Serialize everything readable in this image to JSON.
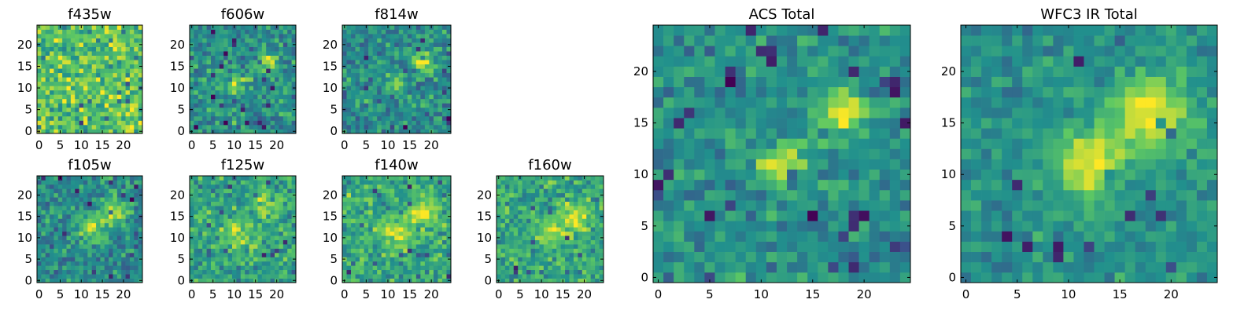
{
  "figure": {
    "colormap": "viridis",
    "colormap_stops": [
      "#440154",
      "#3b528b",
      "#21908d",
      "#5dc863",
      "#fde725"
    ],
    "frame_color": "#000000"
  },
  "chart_data": [
    {
      "type": "heatmap",
      "title": "f435w",
      "grid_size": [
        25,
        25
      ],
      "xlim": [
        -0.5,
        24.5
      ],
      "ylim": [
        -0.5,
        24.5
      ],
      "xticks": [
        0,
        5,
        10,
        15,
        20
      ],
      "yticks": [
        0,
        5,
        10,
        15,
        20
      ],
      "value_range": [
        0,
        1
      ],
      "mean_level": 0.72,
      "noise": 0.2,
      "sources": []
    },
    {
      "type": "heatmap",
      "title": "f606w",
      "grid_size": [
        25,
        25
      ],
      "xlim": [
        -0.5,
        24.5
      ],
      "ylim": [
        -0.5,
        24.5
      ],
      "xticks": [
        0,
        5,
        10,
        15,
        20
      ],
      "yticks": [
        0,
        5,
        10,
        15,
        20
      ],
      "value_range": [
        0,
        1
      ],
      "mean_level": 0.5,
      "noise": 0.16,
      "sources": [
        {
          "x": 11,
          "y": 11,
          "amplitude": 0.35,
          "sigma": 1.6
        },
        {
          "x": 18,
          "y": 16,
          "amplitude": 0.45,
          "sigma": 1.5
        }
      ]
    },
    {
      "type": "heatmap",
      "title": "f814w",
      "grid_size": [
        25,
        25
      ],
      "xlim": [
        -0.5,
        24.5
      ],
      "ylim": [
        -0.5,
        24.5
      ],
      "xticks": [
        0,
        5,
        10,
        15,
        20
      ],
      "yticks": [
        0,
        5,
        10,
        15,
        20
      ],
      "value_range": [
        0,
        1
      ],
      "mean_level": 0.48,
      "noise": 0.16,
      "sources": [
        {
          "x": 12,
          "y": 11,
          "amplitude": 0.4,
          "sigma": 1.5
        },
        {
          "x": 18,
          "y": 16,
          "amplitude": 0.5,
          "sigma": 1.5
        }
      ]
    },
    {
      "type": "heatmap",
      "title": "f105w",
      "grid_size": [
        25,
        25
      ],
      "xlim": [
        -0.5,
        24.5
      ],
      "ylim": [
        -0.5,
        24.5
      ],
      "xticks": [
        0,
        5,
        10,
        15,
        20
      ],
      "yticks": [
        0,
        5,
        10,
        15,
        20
      ],
      "value_range": [
        0,
        1
      ],
      "mean_level": 0.48,
      "noise": 0.15,
      "sources": [
        {
          "x": 12,
          "y": 12,
          "amplitude": 0.4,
          "sigma": 2.2
        },
        {
          "x": 18,
          "y": 16,
          "amplitude": 0.45,
          "sigma": 2.0
        }
      ]
    },
    {
      "type": "heatmap",
      "title": "f125w",
      "grid_size": [
        25,
        25
      ],
      "xlim": [
        -0.5,
        24.5
      ],
      "ylim": [
        -0.5,
        24.5
      ],
      "xticks": [
        0,
        5,
        10,
        15,
        20
      ],
      "yticks": [
        0,
        5,
        10,
        15,
        20
      ],
      "value_range": [
        0,
        1
      ],
      "mean_level": 0.58,
      "noise": 0.15,
      "sources": [
        {
          "x": 11,
          "y": 11,
          "amplitude": 0.35,
          "sigma": 2.4
        },
        {
          "x": 18,
          "y": 18,
          "amplitude": 0.3,
          "sigma": 2.2
        }
      ]
    },
    {
      "type": "heatmap",
      "title": "f140w",
      "grid_size": [
        25,
        25
      ],
      "xlim": [
        -0.5,
        24.5
      ],
      "ylim": [
        -0.5,
        24.5
      ],
      "xticks": [
        0,
        5,
        10,
        15,
        20
      ],
      "yticks": [
        0,
        5,
        10,
        15,
        20
      ],
      "value_range": [
        0,
        1
      ],
      "mean_level": 0.6,
      "noise": 0.15,
      "sources": [
        {
          "x": 12,
          "y": 11,
          "amplitude": 0.35,
          "sigma": 2.4
        },
        {
          "x": 18,
          "y": 16,
          "amplitude": 0.35,
          "sigma": 2.2
        }
      ]
    },
    {
      "type": "heatmap",
      "title": "f160w",
      "grid_size": [
        25,
        25
      ],
      "xlim": [
        -0.5,
        24.5
      ],
      "ylim": [
        -0.5,
        24.5
      ],
      "xticks": [
        0,
        5,
        10,
        15,
        20
      ],
      "yticks": [
        0,
        5,
        10,
        15,
        20
      ],
      "value_range": [
        0,
        1
      ],
      "mean_level": 0.6,
      "noise": 0.15,
      "sources": [
        {
          "x": 13,
          "y": 12,
          "amplitude": 0.3,
          "sigma": 2.4
        },
        {
          "x": 18,
          "y": 15,
          "amplitude": 0.3,
          "sigma": 2.2
        }
      ]
    },
    {
      "type": "heatmap",
      "title": "ACS Total",
      "grid_size": [
        25,
        25
      ],
      "xlim": [
        -0.5,
        24.5
      ],
      "ylim": [
        -0.5,
        24.5
      ],
      "xticks": [
        0,
        5,
        10,
        15,
        20
      ],
      "yticks": [
        0,
        5,
        10,
        15,
        20
      ],
      "value_range": [
        0,
        1
      ],
      "mean_level": 0.5,
      "noise": 0.12,
      "sources": [
        {
          "x": 12,
          "y": 11,
          "amplitude": 0.45,
          "sigma": 1.5
        },
        {
          "x": 18,
          "y": 16,
          "amplitude": 0.5,
          "sigma": 1.5
        }
      ]
    },
    {
      "type": "heatmap",
      "title": "WFC3 IR Total",
      "grid_size": [
        25,
        25
      ],
      "xlim": [
        -0.5,
        24.5
      ],
      "ylim": [
        -0.5,
        24.5
      ],
      "xticks": [
        0,
        5,
        10,
        15,
        20
      ],
      "yticks": [
        0,
        5,
        10,
        15,
        20
      ],
      "value_range": [
        0,
        1
      ],
      "mean_level": 0.5,
      "noise": 0.1,
      "sources": [
        {
          "x": 12,
          "y": 11,
          "amplitude": 0.45,
          "sigma": 2.5
        },
        {
          "x": 18,
          "y": 16,
          "amplitude": 0.5,
          "sigma": 2.5
        }
      ]
    }
  ]
}
